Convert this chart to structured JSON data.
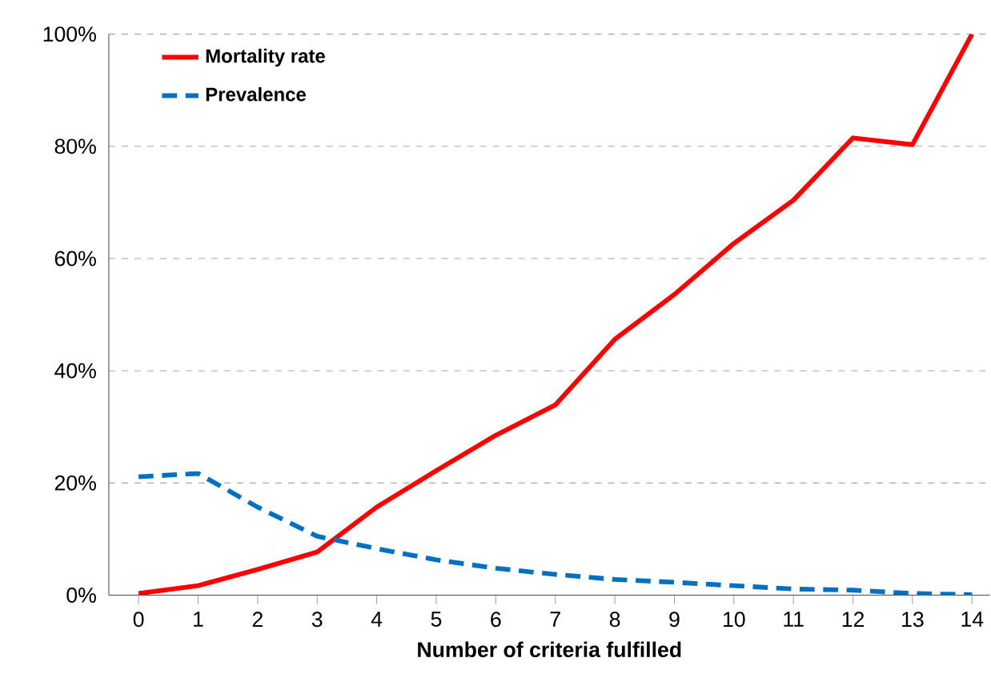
{
  "chart_data": {
    "type": "line",
    "xlabel": "Number of criteria fulfilled",
    "x": [
      0,
      1,
      2,
      3,
      4,
      5,
      6,
      7,
      8,
      9,
      10,
      11,
      12,
      13,
      14
    ],
    "xlim": [
      -0.5,
      14.3
    ],
    "xticks": [
      0,
      1,
      2,
      3,
      4,
      5,
      6,
      7,
      8,
      9,
      10,
      11,
      12,
      13,
      14
    ],
    "ylim": [
      0,
      100
    ],
    "yticks": [
      {
        "value": 0,
        "label": "0%"
      },
      {
        "value": 20,
        "label": "20%"
      },
      {
        "value": 40,
        "label": "40%"
      },
      {
        "value": 60,
        "label": "60%"
      },
      {
        "value": 80,
        "label": "80%"
      },
      {
        "value": 100,
        "label": "100%"
      }
    ],
    "grid": "y",
    "legend": "top left",
    "marker": "none",
    "series": [
      {
        "name": "Mortality rate",
        "color": "#ff0000",
        "line_style": "solid",
        "values": [
          0.3,
          1.7,
          4.6,
          7.7,
          15.7,
          22.2,
          28.5,
          33.9,
          45.6,
          53.6,
          62.7,
          70.4,
          81.5,
          80.3,
          100
        ]
      },
      {
        "name": "Prevalence",
        "color": "#0070c0",
        "line_style": "dashed",
        "values": [
          21.1,
          21.7,
          15.7,
          10.5,
          8.3,
          6.3,
          4.8,
          3.7,
          2.8,
          2.3,
          1.7,
          1.1,
          0.9,
          0.3,
          0.1
        ]
      }
    ]
  }
}
